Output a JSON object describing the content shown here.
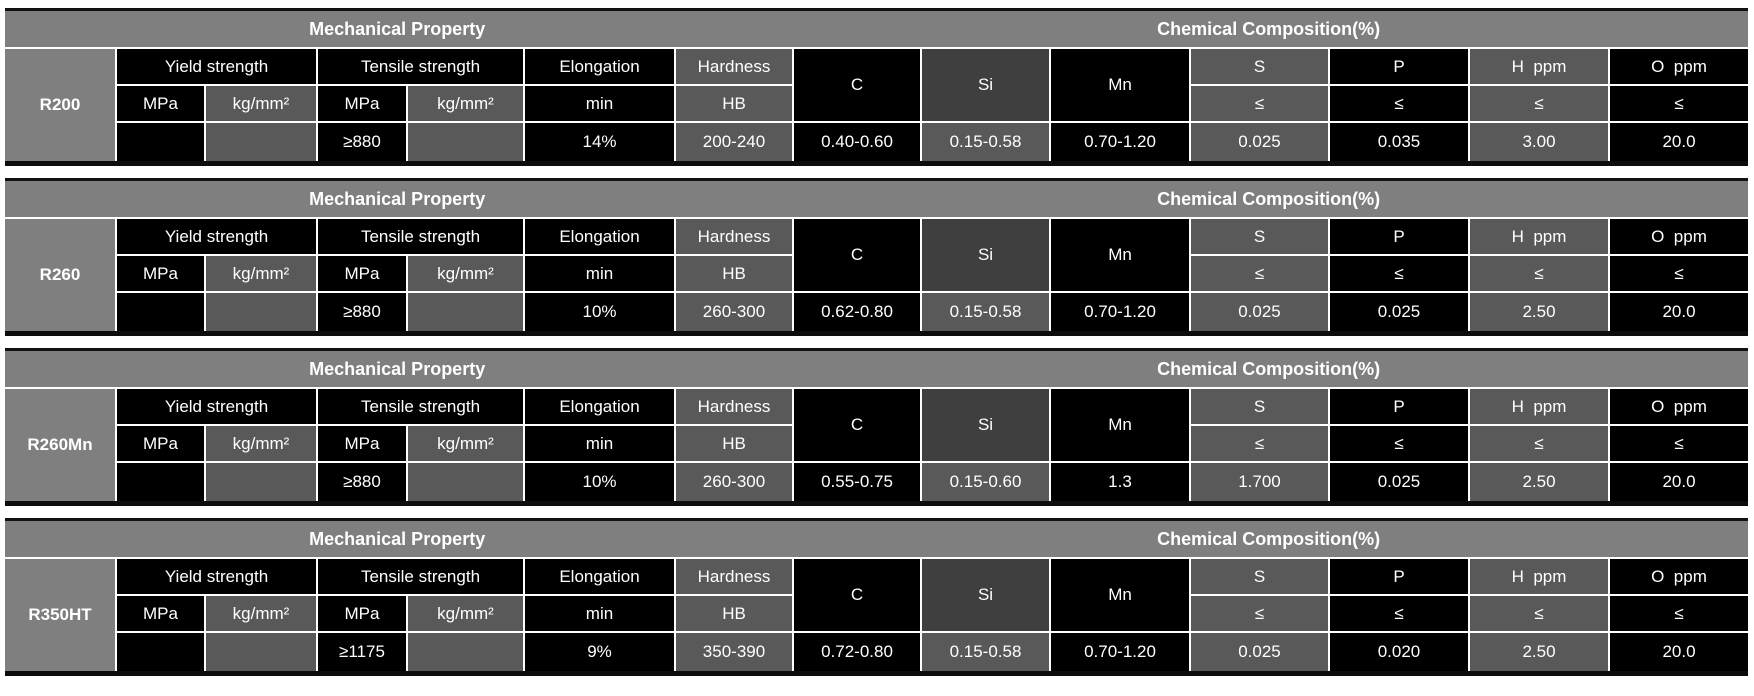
{
  "page": {
    "background": "#ffffff",
    "accent_colors": {
      "header_bar_gray": "#7f7f7f",
      "cell_black": "#000000",
      "cell_gray": "#595959",
      "cell_dark_gray": "#3f3f3f",
      "grade_cell_gray": "#7f7f7f",
      "text_white": "#ffffff"
    }
  },
  "column_headers": {
    "mechanical": "Mechanical Property",
    "chemical": "Chemical Composition(%)",
    "yield_strength": "Yield strength",
    "tensile_strength": "Tensile strength",
    "elongation": "Elongation",
    "hardness": "Hardness",
    "mpa": "MPa",
    "kg_mm2": "kg/mm²",
    "min": "min",
    "hb": "HB",
    "c": "C",
    "si": "Si",
    "mn": "Mn",
    "s": "S",
    "p": "P",
    "h_ppm": "H  ppm",
    "o_ppm": "O  ppm",
    "lte": "≤"
  },
  "tables": [
    {
      "grade": "R200",
      "yield_mpa": "",
      "yield_kg_mm2": "",
      "tensile_mpa": "≥880",
      "tensile_kg_mm2": "",
      "elongation_min": "14%",
      "hardness_hb": "200-240",
      "c": "0.40-0.60",
      "si": "0.15-0.58",
      "mn": "0.70-1.20",
      "s_max": "0.025",
      "p_max": "0.035",
      "h_ppm_max": "3.00",
      "o_ppm_max": "20.0"
    },
    {
      "grade": "R260",
      "yield_mpa": "",
      "yield_kg_mm2": "",
      "tensile_mpa": "≥880",
      "tensile_kg_mm2": "",
      "elongation_min": "10%",
      "hardness_hb": "260-300",
      "c": "0.62-0.80",
      "si": "0.15-0.58",
      "mn": "0.70-1.20",
      "s_max": "0.025",
      "p_max": "0.025",
      "h_ppm_max": "2.50",
      "o_ppm_max": "20.0"
    },
    {
      "grade": "R260Mn",
      "yield_mpa": "",
      "yield_kg_mm2": "",
      "tensile_mpa": "≥880",
      "tensile_kg_mm2": "",
      "elongation_min": "10%",
      "hardness_hb": "260-300",
      "c": "0.55-0.75",
      "si": "0.15-0.60",
      "mn": "1.3",
      "s_max": "1.700",
      "p_max": "0.025",
      "h_ppm_max": "2.50",
      "o_ppm_max": "20.0"
    },
    {
      "grade": "R350HT",
      "yield_mpa": "",
      "yield_kg_mm2": "",
      "tensile_mpa": "≥1175",
      "tensile_kg_mm2": "",
      "elongation_min": "9%",
      "hardness_hb": "350-390",
      "c": "0.72-0.80",
      "si": "0.15-0.58",
      "mn": "0.70-1.20",
      "s_max": "0.025",
      "p_max": "0.020",
      "h_ppm_max": "2.50",
      "o_ppm_max": "20.0"
    }
  ]
}
